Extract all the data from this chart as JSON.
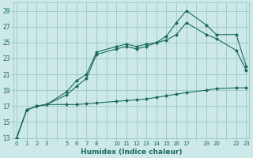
{
  "xlabel": "Humidex (Indice chaleur)",
  "bg_color": "#cce8e8",
  "grid_color": "#a0cccc",
  "line_color": "#1a6b5a",
  "xlim": [
    0,
    23
  ],
  "ylim": [
    13,
    30
  ],
  "yticks": [
    13,
    15,
    17,
    19,
    21,
    23,
    25,
    27,
    29
  ],
  "xtick_labels": [
    "0",
    "1",
    "2",
    "3",
    "",
    "5",
    "6",
    "7",
    "8",
    "",
    "10",
    "11",
    "12",
    "13",
    "14",
    "15",
    "16",
    "17",
    "",
    "19",
    "20",
    "",
    "22",
    "23"
  ],
  "xtick_positions": [
    0,
    1,
    2,
    3,
    4,
    5,
    6,
    7,
    8,
    9,
    10,
    11,
    12,
    13,
    14,
    15,
    16,
    17,
    18,
    19,
    20,
    21,
    22,
    23
  ],
  "line_min_x": [
    0,
    1,
    2,
    3,
    5,
    6,
    7,
    8,
    10,
    11,
    12,
    13,
    14,
    15,
    16,
    17,
    19,
    20,
    22,
    23
  ],
  "line_min_y": [
    13.0,
    16.5,
    17.0,
    17.2,
    17.2,
    17.2,
    17.3,
    17.4,
    17.6,
    17.7,
    17.8,
    17.9,
    18.1,
    18.3,
    18.5,
    18.7,
    19.0,
    19.2,
    19.3,
    19.3
  ],
  "line_mid_x": [
    0,
    1,
    2,
    3,
    5,
    6,
    7,
    8,
    10,
    11,
    12,
    13,
    14,
    15,
    16,
    17,
    19,
    20,
    22,
    23
  ],
  "line_mid_y": [
    13.0,
    16.5,
    17.0,
    17.2,
    18.4,
    19.5,
    20.5,
    23.5,
    24.2,
    24.5,
    24.2,
    24.5,
    25.0,
    25.3,
    26.0,
    27.5,
    26.0,
    25.5,
    24.0,
    21.5
  ],
  "line_max_x": [
    0,
    1,
    2,
    3,
    5,
    6,
    7,
    8,
    10,
    11,
    12,
    13,
    14,
    15,
    16,
    17,
    19,
    20,
    22,
    23
  ],
  "line_max_y": [
    13.0,
    16.5,
    17.0,
    17.2,
    18.8,
    20.2,
    21.0,
    23.8,
    24.5,
    24.8,
    24.5,
    24.8,
    25.0,
    25.8,
    27.5,
    29.0,
    27.2,
    26.0,
    26.0,
    22.0
  ]
}
